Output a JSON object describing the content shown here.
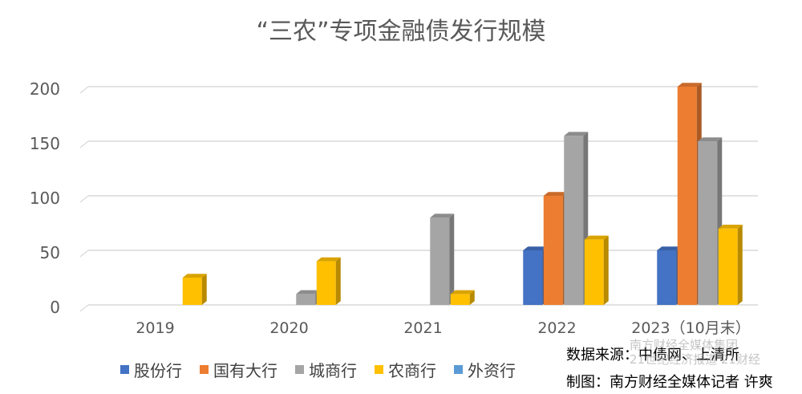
{
  "chart_data": {
    "type": "bar",
    "title": "“三农”专项金融债发行规模",
    "categories": [
      "2019",
      "2020",
      "2021",
      "2022",
      "2023（10月末）"
    ],
    "series": [
      {
        "name": "股份行",
        "color": "#4472C4",
        "values": [
          0,
          0,
          0,
          50,
          50
        ]
      },
      {
        "name": "国有大行",
        "color": "#ED7D31",
        "values": [
          0,
          0,
          0,
          100,
          200
        ]
      },
      {
        "name": "城商行",
        "color": "#A5A5A5",
        "values": [
          0,
          10,
          80,
          155,
          150
        ]
      },
      {
        "name": "农商行",
        "color": "#FFC000",
        "values": [
          25,
          40,
          10,
          60,
          70
        ]
      },
      {
        "name": "外资行",
        "color": "#5B9BD5",
        "values": [
          0,
          0,
          0,
          0,
          0
        ]
      }
    ],
    "ylim": [
      0,
      200
    ],
    "yticks": [
      0,
      50,
      100,
      150,
      200
    ],
    "grid": true,
    "legend_position": "bottom",
    "style": "3d-clustered-column"
  },
  "footer": {
    "source": "数据来源：中债网、上清所",
    "credit": "制图：南方财经全媒体记者 许爽"
  },
  "watermark": {
    "line1": "南方财经全媒体集团",
    "line2": "21世纪经济报道 21财经"
  }
}
